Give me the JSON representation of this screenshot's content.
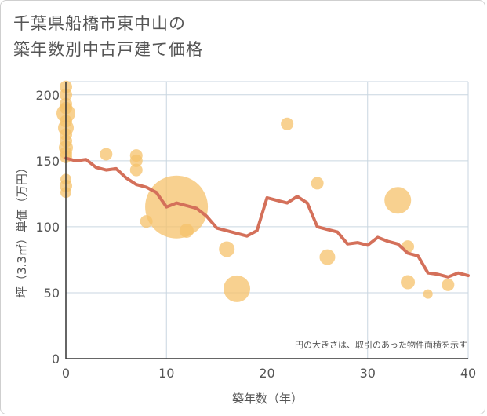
{
  "title_line1": "千葉県船橋市東中山の",
  "title_line2": "築年数別中古戸建て価格",
  "chart_data": {
    "type": "scatter",
    "title": "千葉県船橋市東中山の築年数別中古戸建て価格",
    "xlabel": "築年数（年）",
    "ylabel": "坪（3.3㎡）単価（万円）",
    "xlim": [
      0,
      40
    ],
    "ylim": [
      0,
      210
    ],
    "xticks": [
      0,
      10,
      20,
      30,
      40
    ],
    "yticks": [
      0,
      50,
      100,
      150,
      200
    ],
    "grid": true,
    "note": "円の大きさは、取引のあった物件面積を示す",
    "colors": {
      "points": "#f5c26b",
      "line": "#d4705a"
    },
    "points": [
      {
        "x": 0,
        "y": 206,
        "s": 8
      },
      {
        "x": 0,
        "y": 200,
        "s": 8
      },
      {
        "x": 0,
        "y": 193,
        "s": 8
      },
      {
        "x": 0,
        "y": 190,
        "s": 8
      },
      {
        "x": 0,
        "y": 186,
        "s": 12
      },
      {
        "x": 0,
        "y": 180,
        "s": 8
      },
      {
        "x": 0,
        "y": 175,
        "s": 10
      },
      {
        "x": 0,
        "y": 170,
        "s": 8
      },
      {
        "x": 0,
        "y": 165,
        "s": 8
      },
      {
        "x": 0,
        "y": 160,
        "s": 9
      },
      {
        "x": 0,
        "y": 156,
        "s": 8
      },
      {
        "x": 0,
        "y": 153,
        "s": 8
      },
      {
        "x": 0,
        "y": 136,
        "s": 7
      },
      {
        "x": 0,
        "y": 131,
        "s": 8
      },
      {
        "x": 0,
        "y": 126,
        "s": 7
      },
      {
        "x": 4,
        "y": 155,
        "s": 8
      },
      {
        "x": 7,
        "y": 154,
        "s": 8
      },
      {
        "x": 7,
        "y": 150,
        "s": 8
      },
      {
        "x": 7,
        "y": 143,
        "s": 8
      },
      {
        "x": 8,
        "y": 104,
        "s": 8
      },
      {
        "x": 11,
        "y": 115,
        "s": 40
      },
      {
        "x": 12,
        "y": 97,
        "s": 9
      },
      {
        "x": 16,
        "y": 83,
        "s": 10
      },
      {
        "x": 17,
        "y": 53,
        "s": 17
      },
      {
        "x": 22,
        "y": 178,
        "s": 8
      },
      {
        "x": 25,
        "y": 133,
        "s": 8
      },
      {
        "x": 26,
        "y": 77,
        "s": 10
      },
      {
        "x": 33,
        "y": 120,
        "s": 17
      },
      {
        "x": 34,
        "y": 85,
        "s": 8
      },
      {
        "x": 34,
        "y": 58,
        "s": 9
      },
      {
        "x": 36,
        "y": 49,
        "s": 6
      },
      {
        "x": 38,
        "y": 56,
        "s": 8
      }
    ],
    "series": [
      {
        "x": [
          0,
          1,
          2,
          3,
          4,
          5,
          6,
          7,
          8,
          9,
          10,
          11,
          12,
          13,
          14,
          15,
          16,
          17,
          18,
          19,
          20,
          21,
          22,
          23,
          24,
          25,
          26,
          27,
          28,
          29,
          30,
          31,
          32,
          33,
          34,
          35,
          36,
          37,
          38,
          39,
          40
        ],
        "values": [
          152,
          150,
          151,
          145,
          143,
          144,
          137,
          132,
          130,
          126,
          115,
          118,
          116,
          114,
          108,
          99,
          97,
          95,
          93,
          97,
          122,
          120,
          118,
          123,
          118,
          100,
          98,
          96,
          87,
          88,
          86,
          92,
          89,
          87,
          80,
          78,
          65,
          64,
          62,
          65,
          63
        ]
      }
    ]
  }
}
